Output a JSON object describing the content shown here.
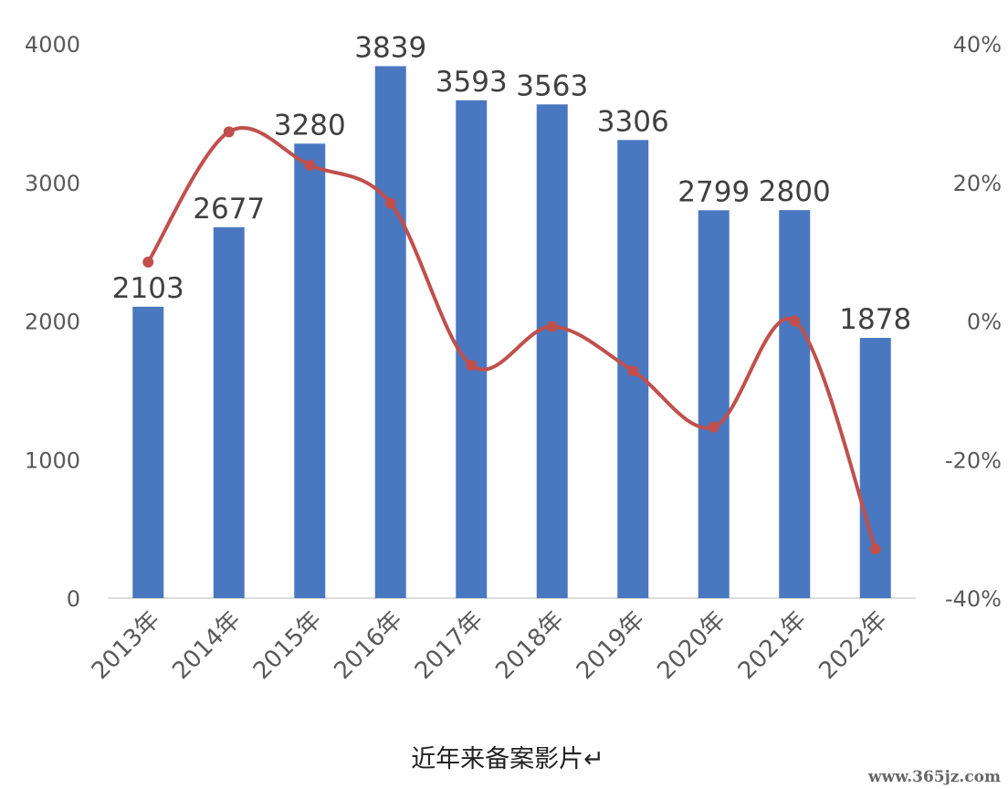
{
  "chart_data": {
    "type": "bar",
    "categories": [
      "2013年",
      "2014年",
      "2015年",
      "2016年",
      "2017年",
      "2018年",
      "2019年",
      "2020年",
      "2021年",
      "2022年"
    ],
    "series": [
      {
        "type": "bar",
        "values": [
          2103,
          2677,
          3280,
          3839,
          3593,
          3563,
          3306,
          2799,
          2800,
          1878
        ]
      },
      {
        "type": "line",
        "axis": "secondary",
        "values": [
          8.5,
          27.3,
          22.5,
          17.0,
          -6.4,
          -0.8,
          -7.2,
          -15.3,
          0.0,
          -32.9
        ]
      }
    ],
    "yaxis_left": {
      "range": [
        0,
        4000
      ],
      "ticks": [
        0,
        1000,
        2000,
        3000,
        4000
      ]
    },
    "yaxis_right": {
      "range": [
        -40,
        40
      ],
      "ticks": [
        "-40%",
        "-20%",
        "0%",
        "20%",
        "40%"
      ]
    },
    "title": "",
    "caption": "近年来备案影片↵",
    "bar_color": "#4a78c0",
    "line_color": "#c0504d",
    "grid": false,
    "legend": "none",
    "data_labels": true
  },
  "watermark": "www.365jz.com"
}
